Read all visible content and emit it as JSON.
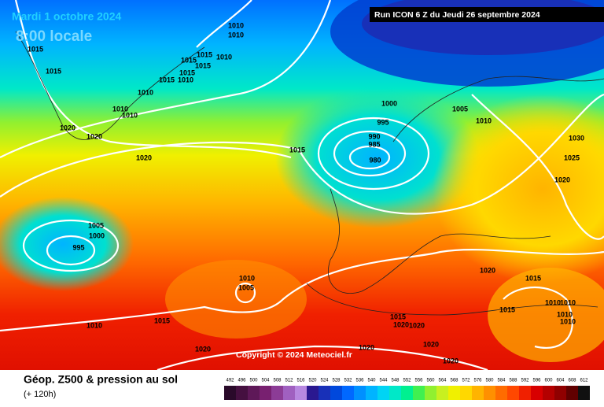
{
  "header": {
    "date": "Mardi 1 octobre 2024",
    "time": "8:00 locale",
    "run": "Run ICON 6 Z du Jeudi 26 septembre 2024"
  },
  "isobar_labels": [
    "1010",
    "1010",
    "1015",
    "1015",
    "1010",
    "1015",
    "1015",
    "1015",
    "1015",
    "1015",
    "1010",
    "1010",
    "1000",
    "1005",
    "1010",
    "1010",
    "995",
    "1010",
    "1020",
    "1020",
    "990",
    "985",
    "1015",
    "1030",
    "980",
    "1020",
    "1025",
    "1020",
    "1005",
    "1000",
    "995",
    "1020",
    "1015",
    "1010",
    "1005",
    "1010",
    "1010",
    "1015",
    "1010",
    "1010",
    "1015",
    "1020",
    "1020",
    "1010",
    "1015",
    "1020",
    "1020",
    "1020",
    "1020"
  ],
  "copyright": "Copyright © 2024 Meteociel.fr",
  "footer": {
    "title": "Géop. Z500 & pression au sol",
    "lead": "(+ 120h)"
  },
  "legend": {
    "values": [
      492,
      496,
      500,
      504,
      508,
      512,
      516,
      520,
      524,
      528,
      532,
      536,
      540,
      544,
      548,
      552,
      556,
      560,
      564,
      568,
      572,
      576,
      580,
      584,
      588,
      592,
      596,
      600,
      604,
      608,
      612
    ],
    "colors": [
      "#2a0a2a",
      "#451040",
      "#5e1858",
      "#782070",
      "#8c3c96",
      "#a060c0",
      "#b888e0",
      "#2a1890",
      "#1830b8",
      "#0048dc",
      "#0068ff",
      "#0090ff",
      "#00b4ff",
      "#00d4f4",
      "#00e8c8",
      "#00f090",
      "#40f050",
      "#90f030",
      "#c8f020",
      "#f0f000",
      "#ffd800",
      "#ffb400",
      "#ff9000",
      "#ff6c00",
      "#ff4800",
      "#f02000",
      "#d80000",
      "#b40000",
      "#900000",
      "#600000",
      "#101010"
    ]
  }
}
